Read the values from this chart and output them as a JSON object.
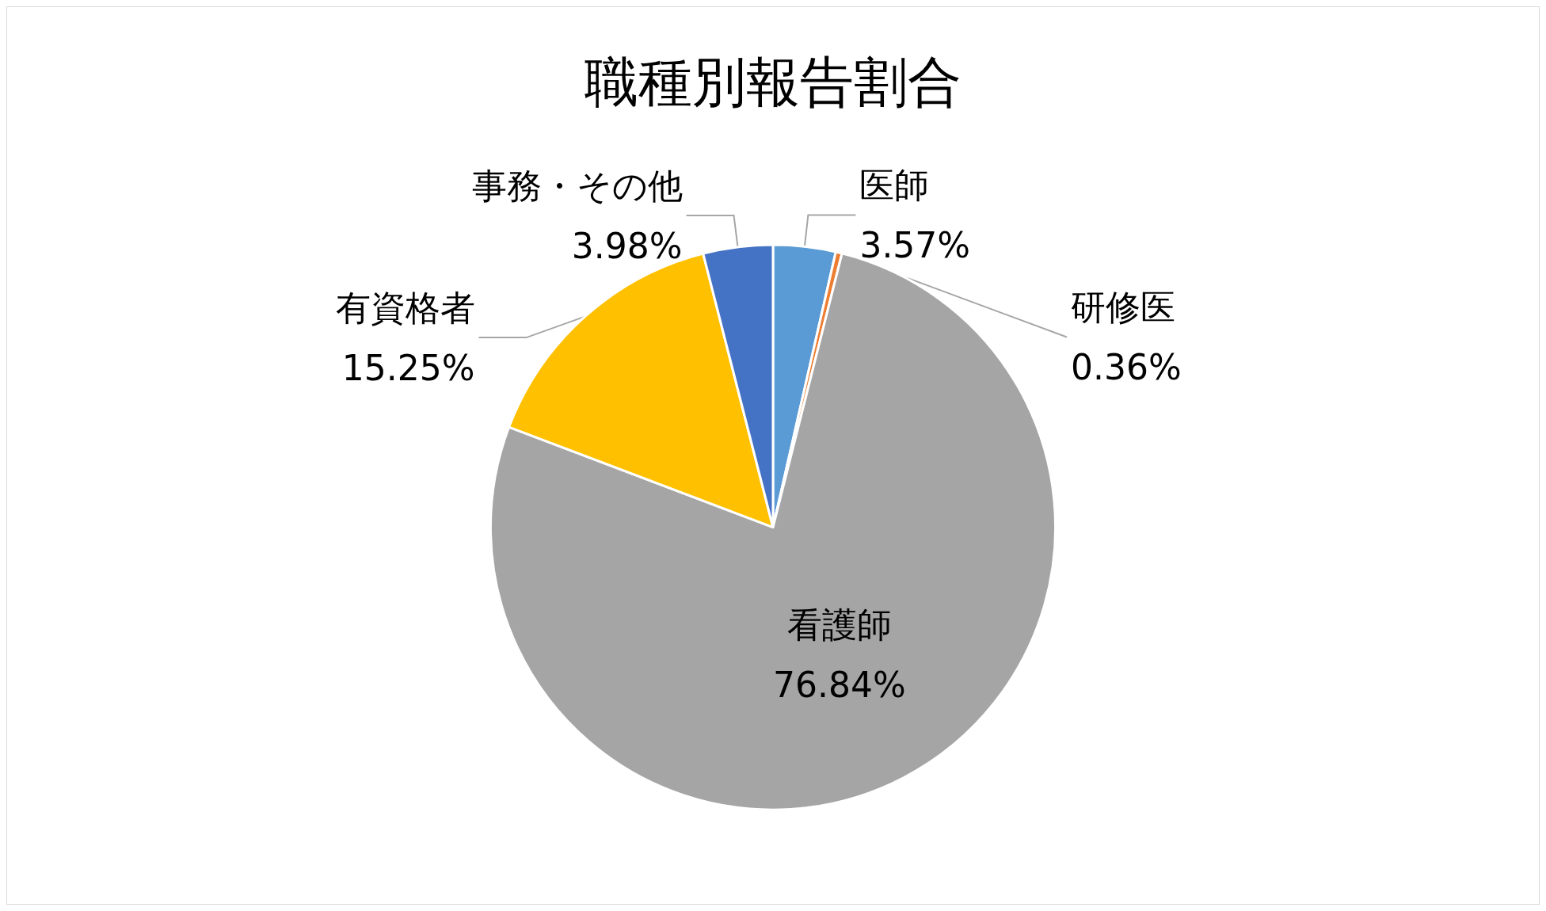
{
  "chart_data": {
    "type": "pie",
    "title": "職種別報告割合",
    "categories": [
      "医師",
      "研修医",
      "看護師",
      "有資格者",
      "事務・その他"
    ],
    "values": [
      3.57,
      0.36,
      76.84,
      15.25,
      3.98
    ],
    "value_labels": [
      "3.57%",
      "0.36%",
      "76.84%",
      "15.25%",
      "3.98%"
    ],
    "colors": [
      "#5b9bd5",
      "#ed7d31",
      "#a5a5a5",
      "#ffc000",
      "#4472c4"
    ],
    "legend": false
  }
}
